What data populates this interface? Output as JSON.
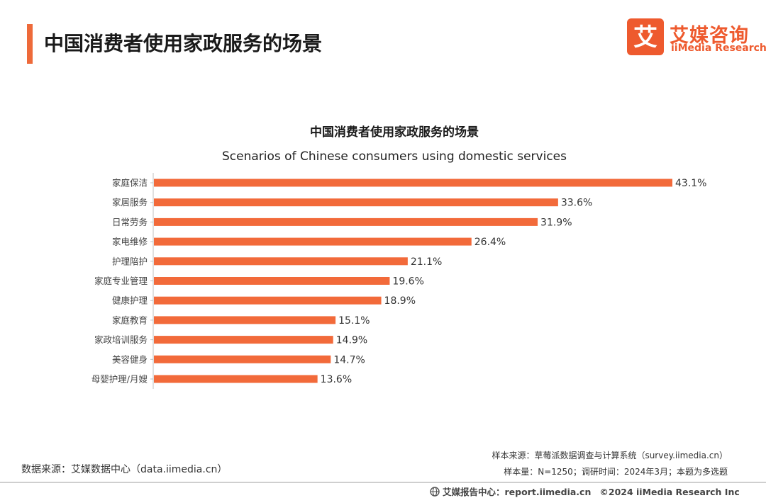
{
  "header": {
    "title": "中国消费者使用家政服务的场景"
  },
  "logo": {
    "mark": "艾",
    "cn": "艾媒咨询",
    "en": "iiMedia Research"
  },
  "colors": {
    "accent": "#ee6a3a",
    "bar": "#f26a3a",
    "axis": "#bfbfbf"
  },
  "chart_data": {
    "type": "bar",
    "orientation": "horizontal",
    "title": "中国消费者使用家政服务的场景",
    "subtitle": "Scenarios of Chinese consumers using domestic services",
    "categories": [
      "家庭保洁",
      "家居服务",
      "日常劳务",
      "家电维修",
      "护理陪护",
      "家庭专业管理",
      "健康护理",
      "家庭教育",
      "家政培训服务",
      "美容健身",
      "母婴护理/月嫂"
    ],
    "values": [
      43.1,
      33.6,
      31.9,
      26.4,
      21.1,
      19.6,
      18.9,
      15.1,
      14.9,
      14.7,
      13.6
    ],
    "unit": "%",
    "xlim": [
      0,
      50
    ],
    "xlabel": "",
    "ylabel": ""
  },
  "source": {
    "left": "数据来源：艾媒数据中心（data.iimedia.cn）",
    "sample_source": "样本来源：草莓派数据调查与计算系统（survey.iimedia.cn）",
    "sample_info": "样本量：N=1250；调研时间：2024年3月；本题为多选题"
  },
  "footer": {
    "report": "艾媒报告中心：report.iimedia.cn",
    "copyright": "©2024  iiMedia Research  Inc"
  }
}
